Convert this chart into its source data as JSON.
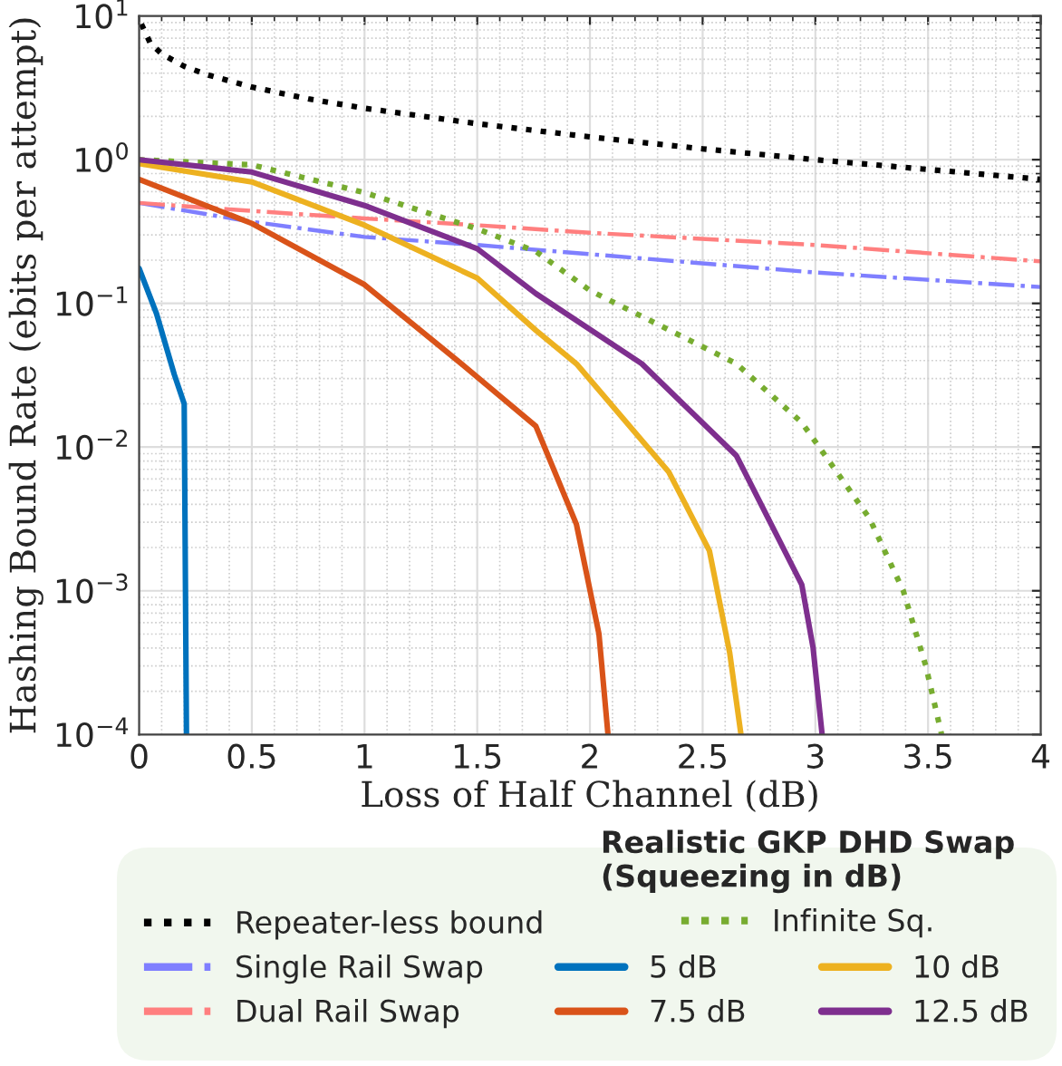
{
  "chart_data": {
    "type": "line",
    "xlabel": "Loss of Half Channel (dB)",
    "ylabel": "Hashing Bound Rate (ebits per attempt)",
    "legend_title": "Realistic GKP DHD Swap\n(Squeezing in dB)",
    "log": "y",
    "grid": true,
    "legend": "bottom",
    "xlim": [
      0,
      4
    ],
    "xticks": [
      0,
      0.5,
      1,
      1.5,
      2,
      2.5,
      3,
      3.5,
      4
    ],
    "ylim": [
      0.0001,
      10
    ],
    "yticks": [
      {
        "value": 0.0001,
        "label": "10$^{−4}$"
      },
      {
        "value": 0.001,
        "label": "10$^{−3}$"
      },
      {
        "value": 0.01,
        "label": "10$^{−2}$"
      },
      {
        "value": 0.1,
        "label": "10$^{−1}$"
      },
      {
        "value": 1,
        "label": "10$^{0}$"
      },
      {
        "value": 10,
        "label": "10$^{1}$"
      }
    ],
    "series": [
      {
        "name": "Repeater-less bound",
        "color": "#000000",
        "line_style": "dotted",
        "x": [
          0.01,
          0.05,
          0.1,
          0.2,
          0.3,
          0.5,
          0.75,
          1,
          1.5,
          2,
          2.5,
          3,
          3.5,
          4
        ],
        "values": [
          8.8,
          6.45,
          5.45,
          4.47,
          3.91,
          3.2,
          2.65,
          2.28,
          1.78,
          1.44,
          1.19,
          1.0,
          0.855,
          0.73
        ]
      },
      {
        "name": "Single Rail Swap",
        "color": "#7f7fff",
        "line_style": "dashdot",
        "x": [
          0,
          0.5,
          1,
          1.5,
          2,
          3,
          4
        ],
        "values": [
          0.5,
          0.37,
          0.29,
          0.255,
          0.22,
          0.164,
          0.13
        ]
      },
      {
        "name": "Dual Rail Swap",
        "color": "#ff7f7f",
        "line_style": "dashdot",
        "x": [
          0,
          0.5,
          1,
          1.5,
          2,
          3,
          4
        ],
        "values": [
          0.5,
          0.44,
          0.39,
          0.35,
          0.31,
          0.255,
          0.196
        ]
      },
      {
        "name": "Infinite Sq.",
        "color": "#77ac30",
        "line_style": "dotted",
        "x": [
          0,
          0.5,
          1,
          1.5,
          1.76,
          2,
          2.65,
          2.94,
          3.24,
          3.39,
          3.49,
          3.56
        ],
        "values": [
          1.0,
          0.92,
          0.59,
          0.33,
          0.23,
          0.123,
          0.038,
          0.0148,
          0.0032,
          0.001,
          0.0003,
          0.0001
        ]
      },
      {
        "name": "5 dB",
        "color": "#0072bd",
        "line_style": "solid",
        "x": [
          0,
          0.077,
          0.156,
          0.2,
          0.21
        ],
        "values": [
          0.175,
          0.085,
          0.032,
          0.02,
          0.0001
        ]
      },
      {
        "name": "7.5 dB",
        "color": "#d95319",
        "line_style": "solid",
        "x": [
          0,
          0.5,
          1,
          1.43,
          1.76,
          1.94,
          2.04,
          2.08
        ],
        "values": [
          0.73,
          0.36,
          0.135,
          0.038,
          0.014,
          0.0029,
          0.0005,
          0.0001
        ]
      },
      {
        "name": "10 dB",
        "color": "#edb120",
        "line_style": "solid",
        "x": [
          0,
          0.5,
          1,
          1.5,
          1.76,
          1.94,
          2.35,
          2.53,
          2.62,
          2.67
        ],
        "values": [
          0.94,
          0.7,
          0.35,
          0.15,
          0.065,
          0.038,
          0.0067,
          0.0019,
          0.00037,
          0.0001
        ]
      },
      {
        "name": "12.5 dB",
        "color": "#7e2f8e",
        "line_style": "solid",
        "x": [
          0,
          0.5,
          1,
          1.5,
          1.76,
          2.23,
          2.65,
          2.94,
          2.99,
          3.03
        ],
        "values": [
          1.0,
          0.82,
          0.48,
          0.24,
          0.117,
          0.038,
          0.0087,
          0.0011,
          0.0004,
          0.0001
        ]
      }
    ]
  }
}
